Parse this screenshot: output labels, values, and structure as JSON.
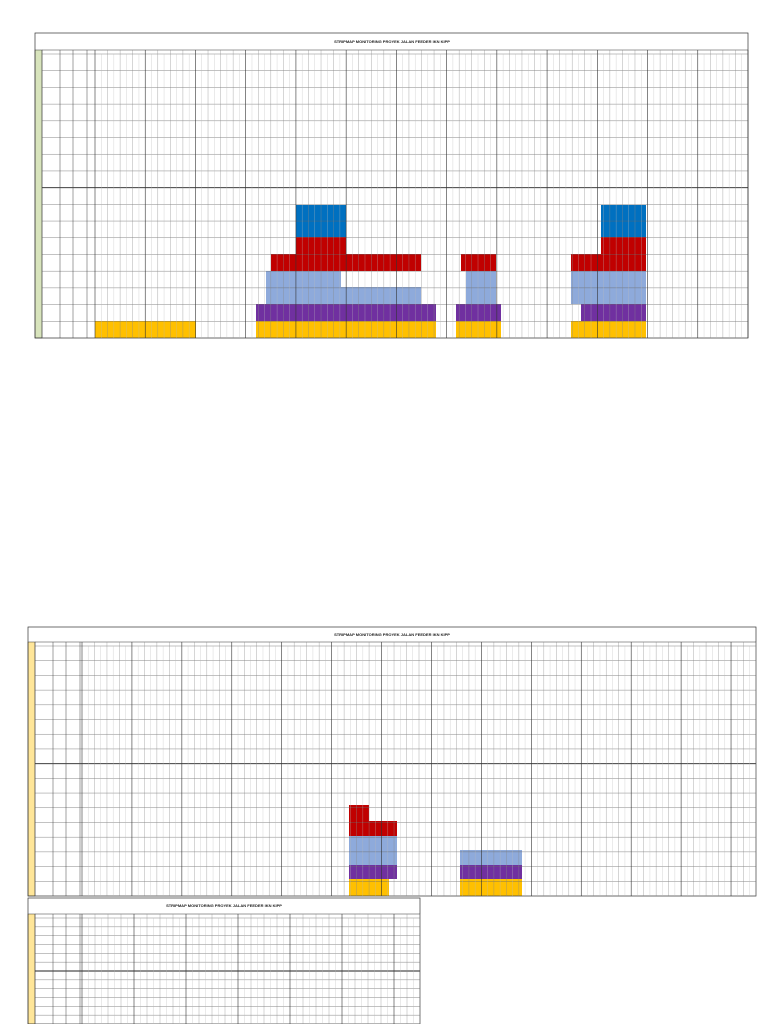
{
  "sheets": [
    {
      "title": "STRIPMAP MONITORING PROYEK JALAN FEEDER IKN KIPP"
    },
    {
      "title": "STRIPMAP MONITORING PROYEK JALAN FEEDER IKN KIPP"
    },
    {
      "title": "STRIPMAP MONITORING PROYEK JALAN FEEDER IKN KIPP"
    }
  ]
}
